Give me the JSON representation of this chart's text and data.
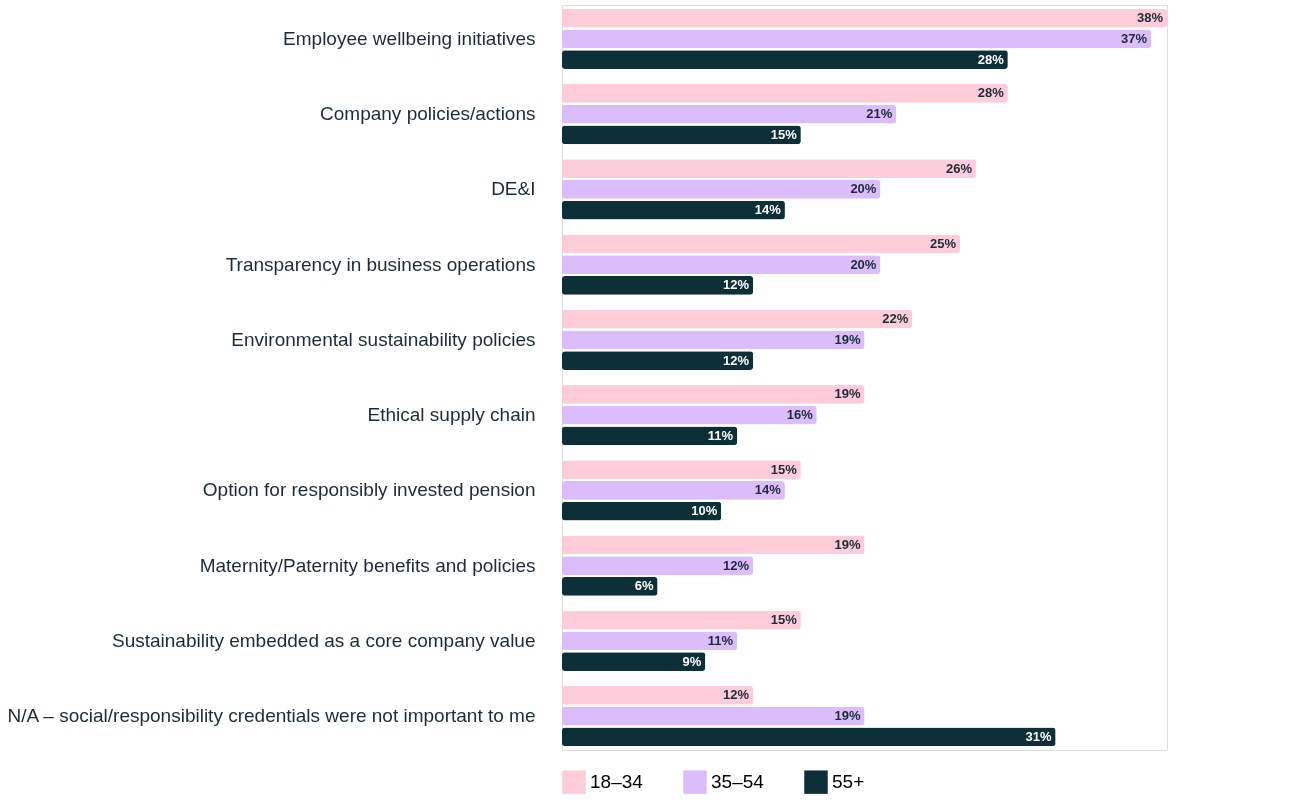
{
  "chart_data": {
    "type": "bar",
    "orientation": "horizontal",
    "legend": "bottom",
    "xlim": [
      0,
      38
    ],
    "categories": [
      "Employee wellbeing initiatives",
      "Company policies/actions",
      "DE&I",
      "Transparency in business operations",
      "Environmental sustainability policies",
      "Ethical supply chain",
      "Option for responsibly invested pension",
      "Maternity/Paternity benefits and policies",
      "Sustainability embedded as a core company value",
      "N/A – social/responsibility credentials were not important to me"
    ],
    "series": [
      {
        "name": "18–34",
        "color": "#ffcdd9",
        "values": [
          38,
          28,
          26,
          25,
          22,
          19,
          15,
          19,
          15,
          12
        ],
        "value_labels": [
          "38%",
          "28%",
          "26%",
          "25%",
          "22%",
          "19%",
          "15%",
          "19%",
          "15%",
          "12%"
        ]
      },
      {
        "name": "35–54",
        "color": "#dcbdfb",
        "values": [
          37,
          21,
          20,
          20,
          19,
          16,
          14,
          12,
          11,
          19
        ],
        "value_labels": [
          "37%",
          "21%",
          "20%",
          "20%",
          "19%",
          "16%",
          "14%",
          "12%",
          "11%",
          "19%"
        ]
      },
      {
        "name": "55+",
        "color": "#0c2f38",
        "values": [
          28,
          15,
          14,
          12,
          12,
          11,
          10,
          6,
          9,
          31
        ],
        "value_labels": [
          "28%",
          "15%",
          "14%",
          "12%",
          "12%",
          "11%",
          "10%",
          "6%",
          "9%",
          "31%"
        ]
      }
    ]
  }
}
